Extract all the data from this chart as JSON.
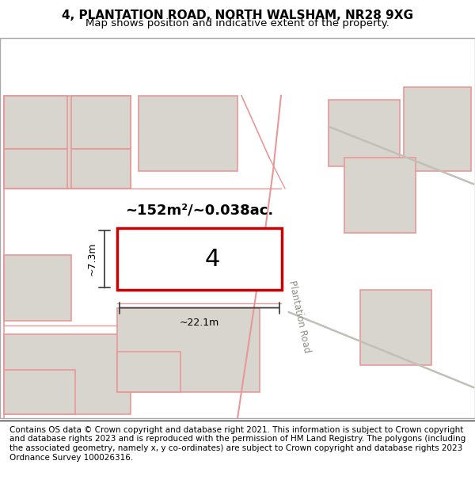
{
  "title": "4, PLANTATION ROAD, NORTH WALSHAM, NR28 9XG",
  "subtitle": "Map shows position and indicative extent of the property.",
  "area_label": "~152m²/~0.038ac.",
  "width_label": "~22.1m",
  "height_label": "~7.3m",
  "number_label": "4",
  "road_label": "Plantation Road",
  "footer": "Contains OS data © Crown copyright and database right 2021. This information is subject to Crown copyright and database rights 2023 and is reproduced with the permission of HM Land Registry. The polygons (including the associated geometry, namely x, y co-ordinates) are subject to Crown copyright and database rights 2023 Ordnance Survey 100026316.",
  "map_bg": "#f0eeea",
  "property_color": "#cc0000",
  "building_fill": "#d8d4ce",
  "building_edge": "#e89898",
  "dim_line_color": "#444444",
  "road_line_color": "#c0c0b8",
  "title_fontsize": 11,
  "subtitle_fontsize": 9.5,
  "footer_fontsize": 7.5
}
